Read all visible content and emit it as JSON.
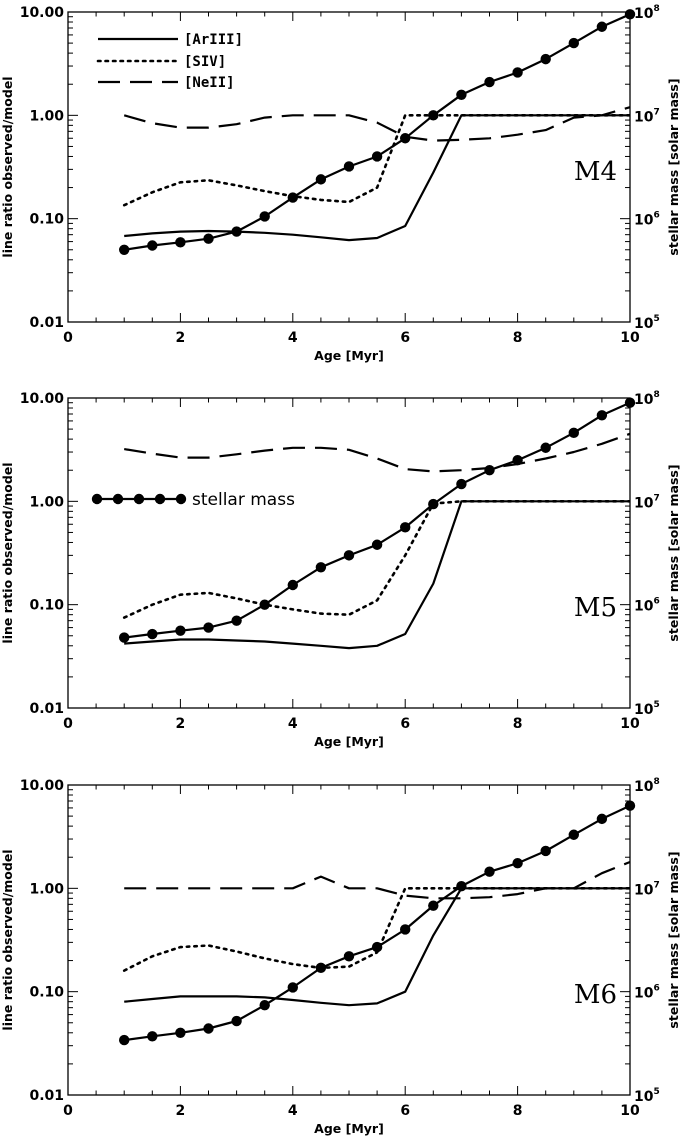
{
  "chart_data": [
    {
      "type": "line",
      "panel_label": "M4",
      "xlabel": "Age [Myr]",
      "ylabel_left": "line ratio observed/model",
      "ylabel_right": "stellar mass [solar mass]",
      "xlim": [
        0,
        10
      ],
      "x_ticks": [
        "0",
        "2",
        "4",
        "6",
        "8",
        "10"
      ],
      "ylim_left": [
        0.01,
        10
      ],
      "y_ticks_left": [
        "0.01",
        "0.10",
        "1.00",
        "10.00"
      ],
      "ylim_right_log10": [
        5,
        8
      ],
      "y_ticks_right": [
        {
          "base": "10",
          "exp": "5"
        },
        {
          "base": "10",
          "exp": "6"
        },
        {
          "base": "10",
          "exp": "7"
        },
        {
          "base": "10",
          "exp": "8"
        }
      ],
      "y_scale": "log",
      "legend": {
        "position": "top-left",
        "entries": [
          "[ArIII]",
          "[SIV]",
          "[NeII]"
        ]
      },
      "series": [
        {
          "name": "[ArIII]",
          "style": "solid",
          "axis": "left",
          "x": [
            1,
            1.5,
            2,
            2.5,
            3,
            3.5,
            4,
            4.5,
            5,
            5.5,
            6,
            6.5,
            7,
            7.5,
            8,
            8.5,
            9,
            9.5,
            10
          ],
          "y": [
            0.068,
            0.072,
            0.075,
            0.076,
            0.075,
            0.073,
            0.07,
            0.066,
            0.062,
            0.065,
            0.085,
            0.28,
            1.0,
            1.0,
            1.0,
            1.0,
            1.0,
            1.0,
            1.0
          ]
        },
        {
          "name": "[SIV]",
          "style": "dotted",
          "axis": "left",
          "x": [
            1,
            1.5,
            2,
            2.5,
            3,
            3.5,
            4,
            4.5,
            5,
            5.5,
            6,
            6.5,
            7,
            7.5,
            8,
            8.5,
            9,
            9.5,
            10
          ],
          "y": [
            0.135,
            0.18,
            0.225,
            0.235,
            0.21,
            0.185,
            0.165,
            0.152,
            0.145,
            0.2,
            1.0,
            1.0,
            1.0,
            1.0,
            1.0,
            1.0,
            1.0,
            1.0,
            1.0
          ]
        },
        {
          "name": "[NeII]",
          "style": "dashed",
          "axis": "left",
          "x": [
            1,
            1.5,
            2,
            2.5,
            3,
            3.5,
            4,
            4.5,
            5,
            5.5,
            6,
            6.5,
            7,
            7.5,
            8,
            8.5,
            9,
            9.5,
            10
          ],
          "y": [
            1.0,
            0.84,
            0.76,
            0.76,
            0.82,
            0.95,
            1.0,
            1.0,
            1.0,
            0.85,
            0.62,
            0.57,
            0.58,
            0.6,
            0.65,
            0.72,
            0.95,
            1.0,
            1.2
          ]
        },
        {
          "name": "stellar mass",
          "style": "solid-markers",
          "axis": "right",
          "x": [
            1,
            1.5,
            2,
            2.5,
            3,
            3.5,
            4,
            4.5,
            5,
            5.5,
            6,
            6.5,
            7,
            7.5,
            8,
            8.5,
            9,
            9.5,
            10
          ],
          "y": [
            500000,
            550000,
            590000,
            640000,
            750000,
            1050000,
            1600000,
            2400000,
            3200000,
            4000000,
            6000000,
            10000000,
            15800000,
            21000000,
            26000000,
            35000000,
            50000000,
            72000000,
            95000000
          ]
        }
      ]
    },
    {
      "type": "line",
      "panel_label": "M5",
      "xlabel": "Age [Myr]",
      "ylabel_left": "line ratio observed/model",
      "ylabel_right": "stellar mass [solar mass]",
      "xlim": [
        0,
        10
      ],
      "x_ticks": [
        "0",
        "2",
        "4",
        "6",
        "8",
        "10"
      ],
      "ylim_left": [
        0.01,
        10
      ],
      "y_ticks_left": [
        "0.01",
        "0.10",
        "1.00",
        "10.00"
      ],
      "ylim_right_log10": [
        5,
        8
      ],
      "y_ticks_right": [
        {
          "base": "10",
          "exp": "5"
        },
        {
          "base": "10",
          "exp": "6"
        },
        {
          "base": "10",
          "exp": "7"
        },
        {
          "base": "10",
          "exp": "8"
        }
      ],
      "y_scale": "log",
      "legend": {
        "position": "upper-left",
        "entries": [
          "stellar mass"
        ]
      },
      "series": [
        {
          "name": "[ArIII]",
          "style": "solid",
          "axis": "left",
          "x": [
            1,
            1.5,
            2,
            2.5,
            3,
            3.5,
            4,
            4.5,
            5,
            5.5,
            6,
            6.5,
            7,
            7.5,
            8,
            8.5,
            9,
            9.5,
            10
          ],
          "y": [
            0.042,
            0.044,
            0.046,
            0.046,
            0.045,
            0.044,
            0.042,
            0.04,
            0.038,
            0.04,
            0.052,
            0.16,
            1.0,
            1.0,
            1.0,
            1.0,
            1.0,
            1.0,
            1.0
          ]
        },
        {
          "name": "[SIV]",
          "style": "dotted",
          "axis": "left",
          "x": [
            1,
            1.5,
            2,
            2.5,
            3,
            3.5,
            4,
            4.5,
            5,
            5.5,
            6,
            6.5,
            7,
            7.5,
            8,
            8.5,
            9,
            9.5,
            10
          ],
          "y": [
            0.075,
            0.1,
            0.125,
            0.13,
            0.115,
            0.1,
            0.09,
            0.082,
            0.08,
            0.11,
            0.3,
            0.95,
            1.0,
            1.0,
            1.0,
            1.0,
            1.0,
            1.0,
            1.0
          ]
        },
        {
          "name": "[NeII]",
          "style": "dashed",
          "axis": "left",
          "x": [
            1,
            1.5,
            2,
            2.5,
            3,
            3.5,
            4,
            4.5,
            5,
            5.5,
            6,
            6.5,
            7,
            7.5,
            8,
            8.5,
            9,
            9.5,
            10
          ],
          "y": [
            3.2,
            2.9,
            2.65,
            2.65,
            2.85,
            3.1,
            3.3,
            3.3,
            3.15,
            2.6,
            2.05,
            1.95,
            2.0,
            2.1,
            2.3,
            2.6,
            3.0,
            3.6,
            4.5
          ]
        },
        {
          "name": "stellar mass",
          "style": "solid-markers",
          "axis": "right",
          "x": [
            1,
            1.5,
            2,
            2.5,
            3,
            3.5,
            4,
            4.5,
            5,
            5.5,
            6,
            6.5,
            7,
            7.5,
            8,
            8.5,
            9,
            9.5,
            10
          ],
          "y": [
            480000,
            520000,
            560000,
            600000,
            700000,
            1000000,
            1550000,
            2300000,
            3000000,
            3800000,
            5600000,
            9400000,
            14700000,
            20000000,
            25000000,
            33000000,
            46000000,
            68000000,
            90000000
          ]
        }
      ]
    },
    {
      "type": "line",
      "panel_label": "M6",
      "xlabel": "Age [Myr]",
      "ylabel_left": "line ratio observed/model",
      "ylabel_right": "stellar mass [solar mass]",
      "xlim": [
        0,
        10
      ],
      "x_ticks": [
        "0",
        "2",
        "4",
        "6",
        "8",
        "10"
      ],
      "ylim_left": [
        0.01,
        10
      ],
      "y_ticks_left": [
        "0.01",
        "0.10",
        "1.00",
        "10.00"
      ],
      "ylim_right_log10": [
        5,
        8
      ],
      "y_ticks_right": [
        {
          "base": "10",
          "exp": "5"
        },
        {
          "base": "10",
          "exp": "6"
        },
        {
          "base": "10",
          "exp": "7"
        },
        {
          "base": "10",
          "exp": "8"
        }
      ],
      "y_scale": "log",
      "series": [
        {
          "name": "[ArIII]",
          "style": "solid",
          "axis": "left",
          "x": [
            1,
            1.5,
            2,
            2.5,
            3,
            3.5,
            4,
            4.5,
            5,
            5.5,
            6,
            6.5,
            7,
            7.5,
            8,
            8.5,
            9,
            9.5,
            10
          ],
          "y": [
            0.08,
            0.085,
            0.09,
            0.09,
            0.09,
            0.088,
            0.083,
            0.078,
            0.074,
            0.077,
            0.1,
            0.35,
            1.0,
            1.0,
            1.0,
            1.0,
            1.0,
            1.0,
            1.0
          ]
        },
        {
          "name": "[SIV]",
          "style": "dotted",
          "axis": "left",
          "x": [
            1,
            1.5,
            2,
            2.5,
            3,
            3.5,
            4,
            4.5,
            5,
            5.5,
            6,
            6.5,
            7,
            7.5,
            8,
            8.5,
            9,
            9.5,
            10
          ],
          "y": [
            0.16,
            0.22,
            0.27,
            0.28,
            0.245,
            0.21,
            0.185,
            0.17,
            0.175,
            0.24,
            1.0,
            1.0,
            1.0,
            1.0,
            1.0,
            1.0,
            1.0,
            1.0,
            1.0
          ]
        },
        {
          "name": "[NeII]",
          "style": "dashed",
          "axis": "left",
          "x": [
            1,
            1.5,
            2,
            2.5,
            3,
            3.5,
            4,
            4.5,
            5,
            5.5,
            6,
            6.5,
            7,
            7.5,
            8,
            8.5,
            9,
            9.5,
            10
          ],
          "y": [
            1.0,
            1.0,
            1.0,
            1.0,
            1.0,
            1.0,
            1.0,
            1.3,
            1.0,
            1.0,
            0.85,
            0.8,
            0.8,
            0.82,
            0.88,
            1.0,
            1.0,
            1.4,
            1.8
          ]
        },
        {
          "name": "stellar mass",
          "style": "solid-markers",
          "axis": "right",
          "x": [
            1,
            1.5,
            2,
            2.5,
            3,
            3.5,
            4,
            4.5,
            5,
            5.5,
            6,
            6.5,
            7,
            7.5,
            8,
            8.5,
            9,
            9.5,
            10
          ],
          "y": [
            340000,
            370000,
            400000,
            440000,
            520000,
            740000,
            1100000,
            1700000,
            2200000,
            2700000,
            4000000,
            6800000,
            10500000,
            14500000,
            17500000,
            23000000,
            33000000,
            47000000,
            63000000
          ]
        }
      ]
    }
  ]
}
